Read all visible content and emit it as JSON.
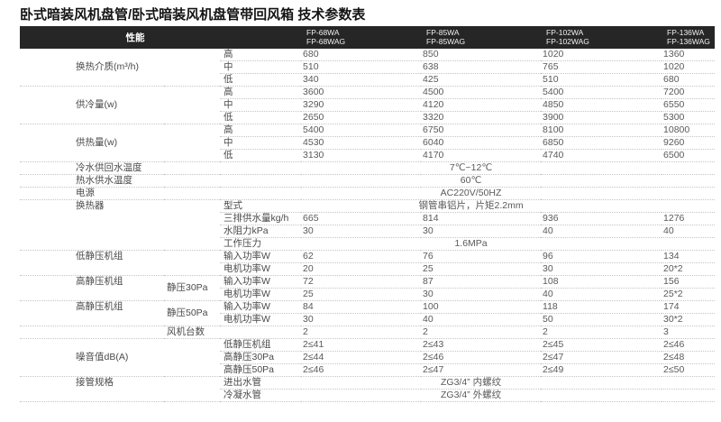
{
  "title": "卧式暗装风机盘管/卧式暗装风机盘管带回风箱 技术参数表",
  "colors": {
    "header_bg": "#262626",
    "header_text": "#ffffff",
    "body_text": "#5a5a5a",
    "dotted_border": "#c5c5c5",
    "page_bg": "#ffffff"
  },
  "table": {
    "header": {
      "perf": "性能",
      "models": [
        {
          "line1": "FP-68WA",
          "line2": "FP-68WAG"
        },
        {
          "line1": "FP-85WA",
          "line2": "FP-85WAG"
        },
        {
          "line1": "FP-102WA",
          "line2": "FP-102WAG"
        },
        {
          "line1": "FP-136WA",
          "line2": "FP-136WAG"
        }
      ]
    },
    "rows": [
      [
        {
          "t": "换热介质(m³/h)",
          "k": "lbl",
          "c": 2,
          "r": 3
        },
        {
          "t": "高",
          "k": "attr"
        },
        {
          "t": "680"
        },
        {
          "t": "850"
        },
        {
          "t": "1020"
        },
        {
          "t": "1360"
        }
      ],
      [
        {
          "t": "中",
          "k": "attr"
        },
        {
          "t": "510"
        },
        {
          "t": "638"
        },
        {
          "t": "765"
        },
        {
          "t": "1020"
        }
      ],
      [
        {
          "t": "低",
          "k": "attr"
        },
        {
          "t": "340"
        },
        {
          "t": "425"
        },
        {
          "t": "510"
        },
        {
          "t": "680"
        }
      ],
      [
        {
          "t": "供冷量(w)",
          "k": "lbl",
          "c": 2,
          "r": 3
        },
        {
          "t": "高",
          "k": "attr"
        },
        {
          "t": "3600"
        },
        {
          "t": "4500"
        },
        {
          "t": "5400"
        },
        {
          "t": "7200"
        }
      ],
      [
        {
          "t": "中",
          "k": "attr"
        },
        {
          "t": "3290"
        },
        {
          "t": "4120"
        },
        {
          "t": "4850"
        },
        {
          "t": "6550"
        }
      ],
      [
        {
          "t": "低",
          "k": "attr"
        },
        {
          "t": "2650"
        },
        {
          "t": "3320"
        },
        {
          "t": "3900"
        },
        {
          "t": "5300"
        }
      ],
      [
        {
          "t": "供热量(w)",
          "k": "lbl",
          "c": 2,
          "r": 3
        },
        {
          "t": "高",
          "k": "attr"
        },
        {
          "t": "5400"
        },
        {
          "t": "6750"
        },
        {
          "t": "8100"
        },
        {
          "t": "10800"
        }
      ],
      [
        {
          "t": "中",
          "k": "attr"
        },
        {
          "t": "4530"
        },
        {
          "t": "6040"
        },
        {
          "t": "6850"
        },
        {
          "t": "9260"
        }
      ],
      [
        {
          "t": "低",
          "k": "attr"
        },
        {
          "t": "3130"
        },
        {
          "t": "4170"
        },
        {
          "t": "4740"
        },
        {
          "t": "6500"
        }
      ],
      [
        {
          "t": "冷水供回水温度",
          "k": "lbl",
          "c": 3
        },
        {
          "t": "7℃~12℃",
          "k": "spanv",
          "c": 4
        }
      ],
      [
        {
          "t": "热水供水温度",
          "k": "lbl",
          "c": 3
        },
        {
          "t": "60℃",
          "k": "spanv",
          "c": 4
        }
      ],
      [
        {
          "t": "电源",
          "k": "lbl",
          "c": 3
        },
        {
          "t": "AC220V/50HZ",
          "k": "spanv",
          "c": 4
        }
      ],
      [
        {
          "t": "换热器",
          "k": "lbl lbl-top",
          "c": 2,
          "r": 4
        },
        {
          "t": "型式",
          "k": "attr"
        },
        {
          "t": "钢管串铝片，片矩2.2mm",
          "k": "spanv",
          "c": 4
        }
      ],
      [
        {
          "t": "三排供水量kg/h",
          "k": "attr"
        },
        {
          "t": "665"
        },
        {
          "t": "814"
        },
        {
          "t": "936"
        },
        {
          "t": "1276"
        }
      ],
      [
        {
          "t": "水阻力kPa",
          "k": "attr"
        },
        {
          "t": "30"
        },
        {
          "t": "30"
        },
        {
          "t": "40"
        },
        {
          "t": "40"
        }
      ],
      [
        {
          "t": "工作压力",
          "k": "attr"
        },
        {
          "t": "1.6MPa",
          "k": "spanv",
          "c": 4
        }
      ],
      [
        {
          "t": "低静压机组",
          "k": "lbl lbl-top",
          "c": 2,
          "r": 2
        },
        {
          "t": "输入功率W",
          "k": "attr"
        },
        {
          "t": "62"
        },
        {
          "t": "76"
        },
        {
          "t": "96"
        },
        {
          "t": "134"
        }
      ],
      [
        {
          "t": "电机功率W",
          "k": "attr"
        },
        {
          "t": "20"
        },
        {
          "t": "25"
        },
        {
          "t": "30"
        },
        {
          "t": "20*2"
        }
      ],
      [
        {
          "t": "高静压机组",
          "k": "lbl lbl-top",
          "r": 2
        },
        {
          "t": "静压30Pa",
          "k": "sub",
          "r": 2
        },
        {
          "t": "输入功率W",
          "k": "attr"
        },
        {
          "t": "72"
        },
        {
          "t": "87"
        },
        {
          "t": "108"
        },
        {
          "t": "156"
        }
      ],
      [
        {
          "t": "电机功率W",
          "k": "attr"
        },
        {
          "t": "25"
        },
        {
          "t": "30"
        },
        {
          "t": "40"
        },
        {
          "t": "25*2"
        }
      ],
      [
        {
          "t": "高静压机组",
          "k": "lbl lbl-top",
          "r": 2
        },
        {
          "t": "静压50Pa",
          "k": "sub",
          "r": 2
        },
        {
          "t": "输入功率W",
          "k": "attr"
        },
        {
          "t": "84"
        },
        {
          "t": "100"
        },
        {
          "t": "118"
        },
        {
          "t": "174"
        }
      ],
      [
        {
          "t": "电机功率W",
          "k": "attr"
        },
        {
          "t": "30"
        },
        {
          "t": "40"
        },
        {
          "t": "50"
        },
        {
          "t": "30*2"
        }
      ],
      [
        {
          "t": "",
          "k": "lbl"
        },
        {
          "t": "风机台数",
          "k": "sub",
          "c": 2
        },
        {
          "t": "2"
        },
        {
          "t": "2"
        },
        {
          "t": "2"
        },
        {
          "t": "3"
        }
      ],
      [
        {
          "t": "噪音值dB(A)",
          "k": "lbl",
          "c": 2,
          "r": 3
        },
        {
          "t": "低静压机组",
          "k": "attr"
        },
        {
          "t": "2≤41"
        },
        {
          "t": "2≤43"
        },
        {
          "t": "2≤45"
        },
        {
          "t": "2≤46"
        }
      ],
      [
        {
          "t": "高静压30Pa",
          "k": "attr"
        },
        {
          "t": "2≤44"
        },
        {
          "t": "2≤46"
        },
        {
          "t": "2≤47"
        },
        {
          "t": "2≤48"
        }
      ],
      [
        {
          "t": "高静压50Pa",
          "k": "attr"
        },
        {
          "t": "2≤46"
        },
        {
          "t": "2≤47"
        },
        {
          "t": "2≤49"
        },
        {
          "t": "2≤50"
        }
      ],
      [
        {
          "t": "接管规格",
          "k": "lbl lbl-top",
          "c": 2,
          "r": 2
        },
        {
          "t": "进出水管",
          "k": "attr"
        },
        {
          "t": "ZG3/4” 内螺纹",
          "k": "spanv",
          "c": 4
        }
      ],
      [
        {
          "t": "冷凝水管",
          "k": "attr"
        },
        {
          "t": "ZG3/4” 外螺纹",
          "k": "spanv",
          "c": 4
        }
      ]
    ]
  }
}
